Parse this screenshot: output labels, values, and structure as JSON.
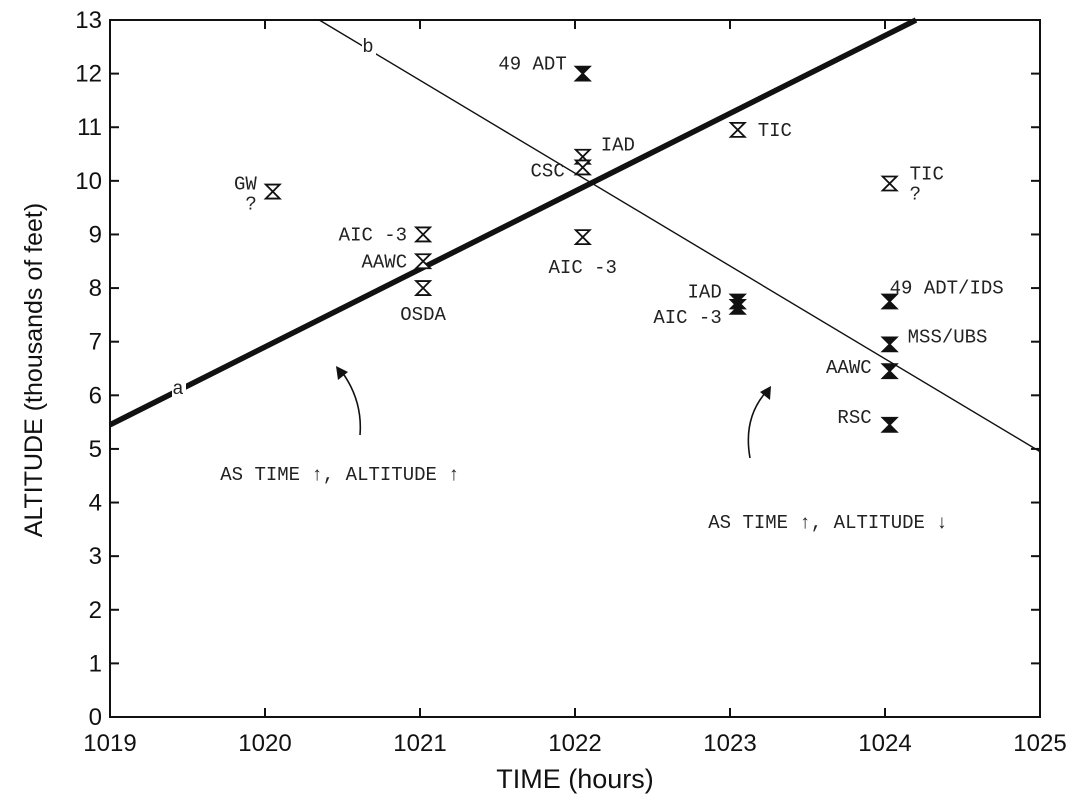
{
  "chart_data": {
    "type": "scatter",
    "xlabel": "TIME (hours)",
    "ylabel": "ALTITUDE (thousands of feet)",
    "xlim": [
      1019,
      1025
    ],
    "ylim": [
      0,
      13
    ],
    "xticks": [
      1019,
      1020,
      1021,
      1022,
      1023,
      1024,
      1025
    ],
    "yticks": [
      0,
      1,
      2,
      3,
      4,
      5,
      6,
      7,
      8,
      9,
      10,
      11,
      12,
      13
    ],
    "grid": false,
    "lines": [
      {
        "label": "a",
        "weight": "heavy",
        "from": [
          1019,
          5.45
        ],
        "to": [
          1024.2,
          13
        ]
      },
      {
        "label": "b",
        "weight": "thin",
        "from": [
          1020.35,
          13
        ],
        "to": [
          1025,
          4.95
        ]
      }
    ],
    "points": [
      {
        "label": "GW\n?",
        "x": 1020.05,
        "y": 9.8,
        "filled": false
      },
      {
        "label": "AIC -3",
        "x": 1021.02,
        "y": 9.0,
        "filled": false
      },
      {
        "label": "AAWC",
        "x": 1021.02,
        "y": 8.5,
        "filled": false
      },
      {
        "label": "OSDA",
        "x": 1021.02,
        "y": 8.0,
        "filled": false
      },
      {
        "label": "49 ADT",
        "x": 1022.05,
        "y": 12.0,
        "filled": true
      },
      {
        "label": "IAD",
        "x": 1022.05,
        "y": 10.45,
        "filled": false
      },
      {
        "label": "CSC",
        "x": 1022.05,
        "y": 10.25,
        "filled": false
      },
      {
        "label": "AIC -3",
        "x": 1022.05,
        "y": 8.95,
        "filled": false
      },
      {
        "label": "TIC",
        "x": 1023.05,
        "y": 10.95,
        "filled": false
      },
      {
        "label": "IAD",
        "x": 1023.05,
        "y": 7.75,
        "filled": true
      },
      {
        "label": "AIC -3",
        "x": 1023.05,
        "y": 7.65,
        "filled": true
      },
      {
        "label": "TIC\n?",
        "x": 1024.03,
        "y": 9.95,
        "filled": false
      },
      {
        "label": "49 ADT/IDS",
        "x": 1024.03,
        "y": 7.75,
        "filled": true
      },
      {
        "label": "MSS/UBS",
        "x": 1024.03,
        "y": 6.95,
        "filled": true
      },
      {
        "label": "AAWC",
        "x": 1024.03,
        "y": 6.45,
        "filled": true
      },
      {
        "label": "RSC",
        "x": 1024.03,
        "y": 5.45,
        "filled": true
      }
    ],
    "annotations": [
      {
        "text": "AS TIME ↑, ALTITUDE ↑"
      },
      {
        "text": "AS TIME ↑, ALTITUDE ↓"
      }
    ]
  }
}
